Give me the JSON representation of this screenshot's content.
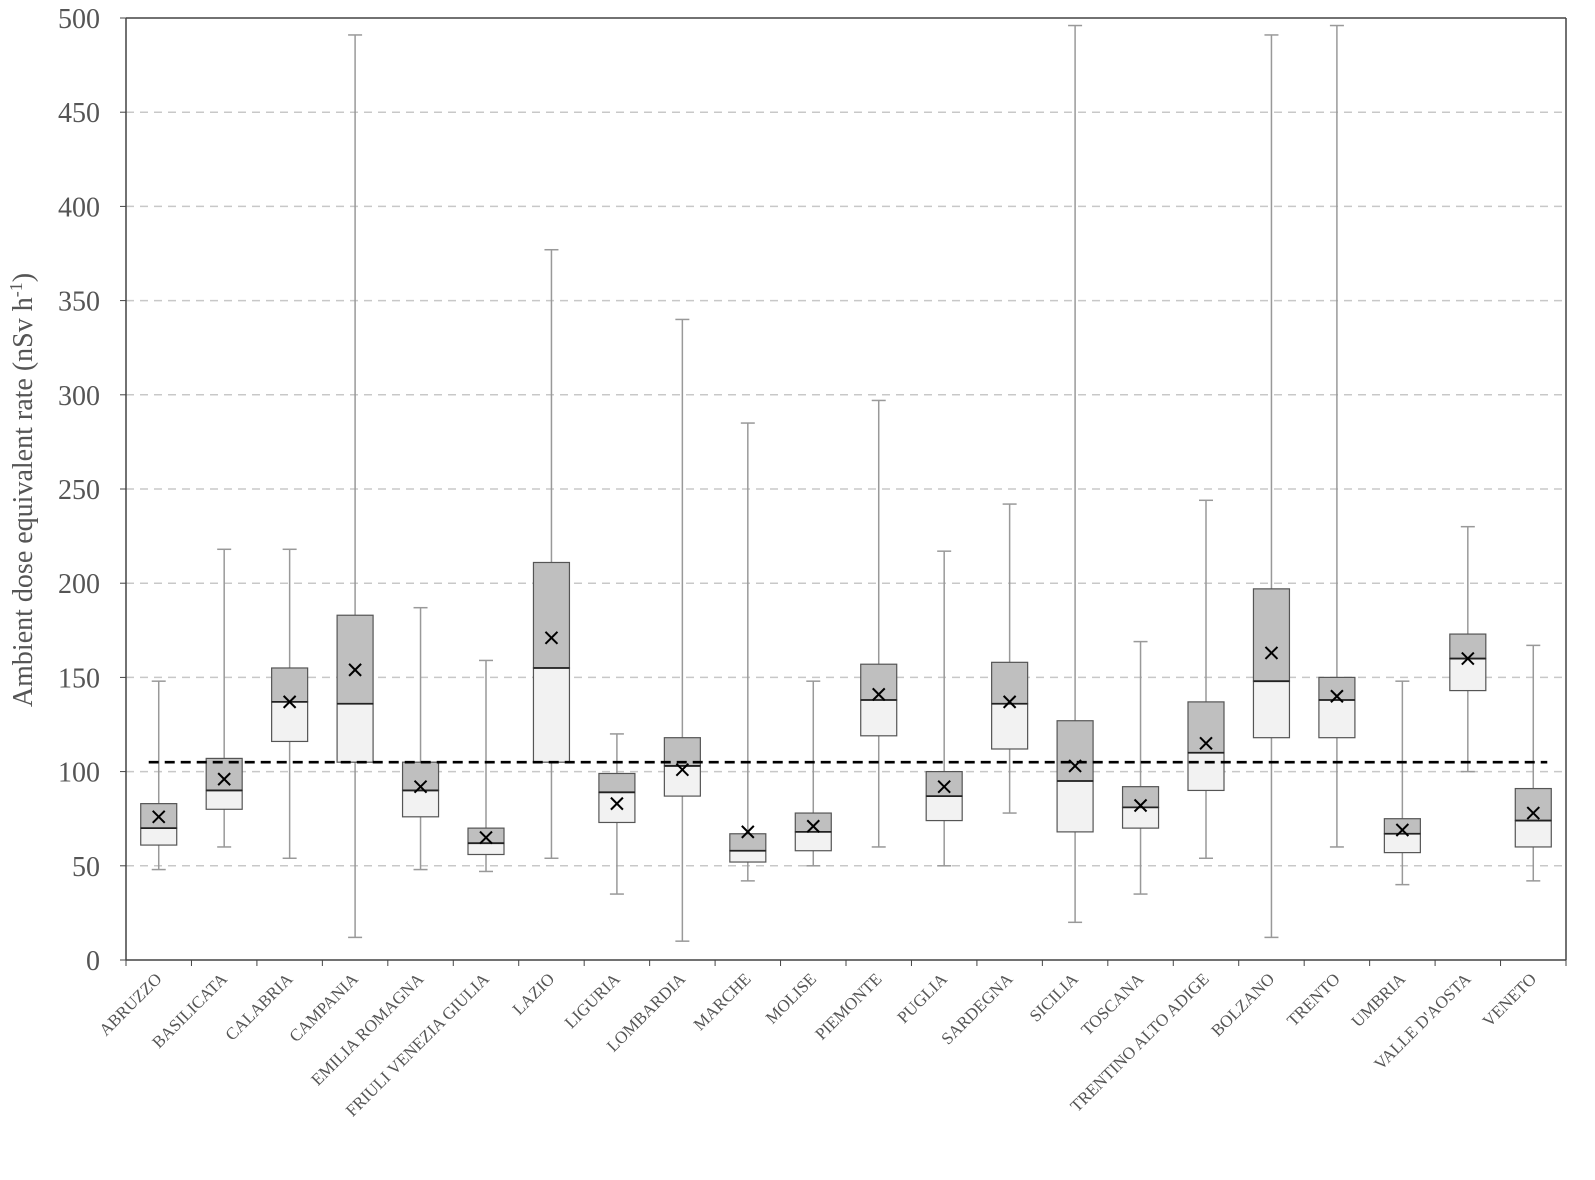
{
  "chart_data": {
    "type": "boxplot",
    "title": "",
    "xlabel": "",
    "ylabel": "Ambient dose equivalent rate (nSv h",
    "ylabel_sup": "-1",
    "ylabel_close": ")",
    "ylim": [
      0,
      500
    ],
    "yticks": [
      0,
      50,
      100,
      150,
      200,
      250,
      300,
      350,
      400,
      450,
      500
    ],
    "grid": "horizontal dashed",
    "reference_line": 105,
    "categories": [
      "ABRUZZO",
      "BASILICATA",
      "CALABRIA",
      "CAMPANIA",
      "EMILIA ROMAGNA",
      "FRIULI VENEZIA GIULIA",
      "LAZIO",
      "LIGURIA",
      "LOMBARDIA",
      "MARCHE",
      "MOLISE",
      "PIEMONTE",
      "PUGLIA",
      "SARDEGNA",
      "SICILIA",
      "TOSCANA",
      "TRENTINO ALTO ADIGE",
      "BOLZANO",
      "TRENTO",
      "UMBRIA",
      "VALLE D'AOSTA",
      "VENETO"
    ],
    "boxes": [
      {
        "min": 48,
        "q1": 61,
        "median": 70,
        "q3": 83,
        "max": 148,
        "mean": 76
      },
      {
        "min": 60,
        "q1": 80,
        "median": 90,
        "q3": 107,
        "max": 218,
        "mean": 96
      },
      {
        "min": 54,
        "q1": 116,
        "median": 137,
        "q3": 155,
        "max": 218,
        "mean": 137
      },
      {
        "min": 12,
        "q1": 105,
        "median": 136,
        "q3": 183,
        "max": 491,
        "mean": 154
      },
      {
        "min": 48,
        "q1": 76,
        "median": 90,
        "q3": 105,
        "max": 187,
        "mean": 92
      },
      {
        "min": 47,
        "q1": 56,
        "median": 62,
        "q3": 70,
        "max": 159,
        "mean": 65
      },
      {
        "min": 54,
        "q1": 105,
        "median": 155,
        "q3": 211,
        "max": 377,
        "mean": 171
      },
      {
        "min": 35,
        "q1": 73,
        "median": 89,
        "q3": 99,
        "max": 120,
        "mean": 83
      },
      {
        "min": 10,
        "q1": 87,
        "median": 103,
        "q3": 118,
        "max": 340,
        "mean": 101
      },
      {
        "min": 42,
        "q1": 52,
        "median": 58,
        "q3": 67,
        "max": 285,
        "mean": 68
      },
      {
        "min": 50,
        "q1": 58,
        "median": 68,
        "q3": 78,
        "max": 148,
        "mean": 71
      },
      {
        "min": 60,
        "q1": 119,
        "median": 138,
        "q3": 157,
        "max": 297,
        "mean": 141
      },
      {
        "min": 50,
        "q1": 74,
        "median": 87,
        "q3": 100,
        "max": 217,
        "mean": 92
      },
      {
        "min": 78,
        "q1": 112,
        "median": 136,
        "q3": 158,
        "max": 242,
        "mean": 137
      },
      {
        "min": 20,
        "q1": 68,
        "median": 95,
        "q3": 127,
        "max": 496,
        "mean": 103
      },
      {
        "min": 35,
        "q1": 70,
        "median": 81,
        "q3": 92,
        "max": 169,
        "mean": 82
      },
      {
        "min": 54,
        "q1": 90,
        "median": 110,
        "q3": 137,
        "max": 244,
        "mean": 115
      },
      {
        "min": 12,
        "q1": 118,
        "median": 148,
        "q3": 197,
        "max": 491,
        "mean": 163
      },
      {
        "min": 60,
        "q1": 118,
        "median": 138,
        "q3": 150,
        "max": 496,
        "mean": 140
      },
      {
        "min": 40,
        "q1": 57,
        "median": 67,
        "q3": 75,
        "max": 148,
        "mean": 69
      },
      {
        "min": 100,
        "q1": 143,
        "median": 160,
        "q3": 173,
        "max": 230,
        "mean": 160
      },
      {
        "min": 42,
        "q1": 60,
        "median": 74,
        "q3": 91,
        "max": 167,
        "mean": 78
      }
    ],
    "colors": {
      "upper_box": "#bfbfbf",
      "lower_box": "#f2f2f2",
      "box_edge": "#555555",
      "whisker": "#999999",
      "mean_marker": "#000000",
      "reference_line": "#000000",
      "grid": "#c8c8c8",
      "axis_text": "#555555"
    }
  }
}
